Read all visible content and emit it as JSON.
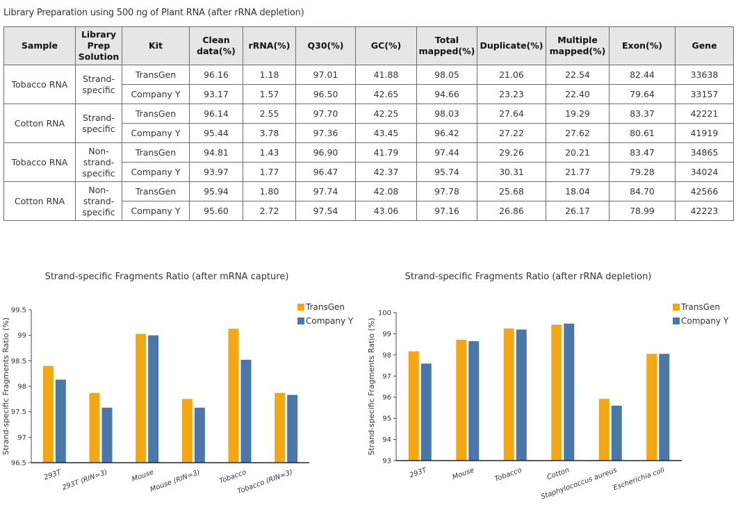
{
  "table": {
    "title": "Library Preparation using 500 ng of Plant RNA (after rRNA depletion)",
    "headers": [
      "Sample",
      "Library Prep Solution",
      "Kit",
      "Clean data(%)",
      "rRNA(%)",
      "Q30(%)",
      "GC(%)",
      "Total mapped(%)",
      "Duplicate(%)",
      "Multiple mapped(%)",
      "Exon(%)",
      "Gene"
    ],
    "groups": [
      {
        "sample": "Tobacco RNA",
        "solution": "Strand-specific",
        "rows": [
          {
            "kit": "TransGen",
            "values": [
              "96.16",
              "1.18",
              "97.01",
              "41.88",
              "98.05",
              "21.06",
              "22.54",
              "82.44",
              "33638"
            ]
          },
          {
            "kit": "Company Y",
            "values": [
              "93.17",
              "1.57",
              "96.50",
              "42.65",
              "94.66",
              "23.23",
              "22.40",
              "79.64",
              "33157"
            ]
          }
        ]
      },
      {
        "sample": "Cotton RNA",
        "solution": "Strand-specific",
        "rows": [
          {
            "kit": "TransGen",
            "values": [
              "96.14",
              "2.55",
              "97.70",
              "42.25",
              "98.03",
              "27.64",
              "19.29",
              "83.37",
              "42221"
            ]
          },
          {
            "kit": "Company Y",
            "values": [
              "95.44",
              "3.78",
              "97.36",
              "43.45",
              "96.42",
              "27.22",
              "27.62",
              "80.61",
              "41919"
            ]
          }
        ]
      },
      {
        "sample": "Tobacco RNA",
        "solution": "Non-strand-specific",
        "rows": [
          {
            "kit": "TransGen",
            "values": [
              "94.81",
              "1.43",
              "96.90",
              "41.79",
              "97.44",
              "29.26",
              "20.21",
              "83.47",
              "34865"
            ]
          },
          {
            "kit": "Company Y",
            "values": [
              "93.97",
              "1.77",
              "96.47",
              "42.37",
              "95.74",
              "30.31",
              "21.77",
              "79.28",
              "34024"
            ]
          }
        ]
      },
      {
        "sample": "Cotton RNA",
        "solution": "Non-strand-specific",
        "rows": [
          {
            "kit": "TransGen",
            "values": [
              "95.94",
              "1.80",
              "97.74",
              "42.08",
              "97.78",
              "25.68",
              "18.04",
              "84.70",
              "42566"
            ]
          },
          {
            "kit": "Company Y",
            "values": [
              "95.60",
              "2.72",
              "97.54",
              "43.06",
              "97.16",
              "26.86",
              "26.17",
              "78.99",
              "42223"
            ]
          }
        ]
      }
    ]
  },
  "colors": {
    "transgen": "#F2A713",
    "company_y": "#4A76A8",
    "axis": "#222222"
  },
  "chart_data": [
    {
      "type": "bar",
      "title": "Strand-specific Fragments Ratio (after mRNA capture)",
      "xlabel": "",
      "ylabel": "Strand-specific Fragments Ratio (%)",
      "ylim": [
        96.5,
        99.5
      ],
      "yticks": [
        96.5,
        97,
        97.5,
        98,
        98.5,
        99,
        99.5
      ],
      "ytick_labels": [
        "96.5",
        "97",
        "97.5",
        "98",
        "98.5",
        "99",
        "99.5"
      ],
      "grid": false,
      "legend": "top-right",
      "categories": [
        "293T",
        "293T (RIN=3)",
        "Mouse",
        "Mouse (RIN=3)",
        "Tobacco",
        "Tobacco (RIN=3)"
      ],
      "series": [
        {
          "name": "TransGen",
          "values": [
            98.4,
            97.87,
            99.03,
            97.75,
            99.13,
            97.87
          ]
        },
        {
          "name": "Company Y",
          "values": [
            98.13,
            97.58,
            99.0,
            97.58,
            98.52,
            97.83
          ]
        }
      ]
    },
    {
      "type": "bar",
      "title": "Strand-specific Fragments Ratio (after rRNA depletion)",
      "xlabel": "",
      "ylabel": "Strand-specific Fragments Ratio (%)",
      "ylim": [
        93,
        100
      ],
      "yticks": [
        93,
        94,
        95,
        96,
        97,
        98,
        99,
        100
      ],
      "ytick_labels": [
        "93",
        "94",
        "95",
        "96",
        "97",
        "98",
        "99",
        "100"
      ],
      "grid": false,
      "legend": "top-right",
      "categories": [
        "293T",
        "Mouse",
        "Tobacco",
        "Cotton",
        "Staphylococcus aureus",
        "Escherichia coli"
      ],
      "series": [
        {
          "name": "TransGen",
          "values": [
            98.17,
            98.72,
            99.25,
            99.43,
            95.92,
            98.05
          ]
        },
        {
          "name": "Company Y",
          "values": [
            97.59,
            98.65,
            99.2,
            99.48,
            95.6,
            98.05
          ]
        }
      ]
    }
  ]
}
